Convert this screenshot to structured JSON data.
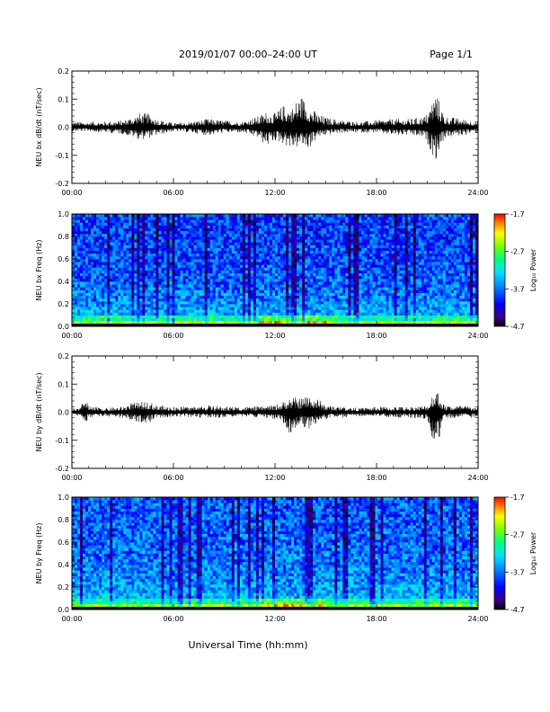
{
  "header": {
    "title": "2019/01/07  00:00–24:00 UT",
    "page": "Page 1/1"
  },
  "footer": {
    "xlabel": "Universal Time (hh:mm)"
  },
  "colors": {
    "trace": "#000000",
    "background": "#ffffff",
    "colormap": [
      "#000000",
      "#3a0080",
      "#0000ff",
      "#0080ff",
      "#00e0ff",
      "#00ff80",
      "#80ff00",
      "#ffff00",
      "#ff8000",
      "#ff0000"
    ]
  },
  "chart_data": [
    {
      "type": "line",
      "ylabel": "NEU bx dB/dt (nT/sec)",
      "xlim": [
        0,
        24
      ],
      "ylim": [
        -0.2,
        0.2
      ],
      "xtick_labels": [
        "00:00",
        "06:00",
        "12:00",
        "18:00",
        "24:00"
      ],
      "ytick_labels": [
        "-0.2",
        "-0.1",
        "0.0",
        "0.1",
        "0.2"
      ],
      "envelope": {
        "x_hours": [
          0,
          1,
          2,
          3,
          4,
          4.5,
          5,
          6,
          7,
          8,
          9,
          10,
          11,
          11.5,
          12,
          12.5,
          13,
          13.5,
          14,
          14.5,
          15,
          16,
          17,
          18,
          19,
          20,
          20.8,
          21,
          21.5,
          22,
          23,
          24
        ],
        "upper": [
          0.02,
          0.02,
          0.02,
          0.025,
          0.05,
          0.05,
          0.03,
          0.015,
          0.02,
          0.03,
          0.025,
          0.02,
          0.04,
          0.055,
          0.05,
          0.08,
          0.07,
          0.12,
          0.08,
          0.05,
          0.035,
          0.025,
          0.02,
          0.025,
          0.03,
          0.03,
          0.04,
          0.05,
          0.13,
          0.04,
          0.03,
          0.02
        ],
        "lower": [
          -0.015,
          -0.015,
          -0.02,
          -0.025,
          -0.045,
          -0.04,
          -0.03,
          -0.015,
          -0.02,
          -0.03,
          -0.02,
          -0.02,
          -0.04,
          -0.07,
          -0.05,
          -0.06,
          -0.08,
          -0.07,
          -0.08,
          -0.04,
          -0.03,
          -0.02,
          -0.02,
          -0.02,
          -0.03,
          -0.03,
          -0.04,
          -0.06,
          -0.12,
          -0.04,
          -0.03,
          -0.02
        ]
      }
    },
    {
      "type": "heatmap",
      "ylabel": "NEU bx Freq (Hz)",
      "xlim": [
        0,
        24
      ],
      "ylim": [
        0.0,
        1.0
      ],
      "xtick_labels": [
        "00:00",
        "06:00",
        "12:00",
        "18:00",
        "24:00"
      ],
      "ytick_labels": [
        "0.0",
        "0.2",
        "0.4",
        "0.6",
        "0.8",
        "1.0"
      ],
      "colorbar": {
        "label": "Log₁₀ Power",
        "ticks": [
          "-1.7",
          "-2.7",
          "-3.7",
          "-4.7"
        ],
        "range": [
          -4.7,
          -1.7
        ]
      },
      "typical_log_power": {
        "high_freq": -3.9,
        "low_freq": -3.3,
        "near_zero_hz": -2.5,
        "enhanced_hours": [
          11,
          15
        ]
      }
    },
    {
      "type": "line",
      "ylabel": "NEU by dB/dt (nT/sec)",
      "xlim": [
        0,
        24
      ],
      "ylim": [
        -0.2,
        0.2
      ],
      "xtick_labels": [
        "00:00",
        "06:00",
        "12:00",
        "18:00",
        "24:00"
      ],
      "ytick_labels": [
        "-0.2",
        "-0.1",
        "0.0",
        "0.1",
        "0.2"
      ],
      "envelope": {
        "x_hours": [
          0,
          0.5,
          0.8,
          1,
          2,
          3,
          3.5,
          4,
          4.5,
          5,
          6,
          7,
          8,
          9,
          10,
          11,
          12,
          12.5,
          13,
          13.5,
          14,
          14.5,
          15,
          16,
          17,
          18,
          19,
          20,
          21,
          21.5,
          22,
          23,
          24
        ],
        "upper": [
          0.015,
          0.015,
          0.06,
          0.02,
          0.015,
          0.02,
          0.035,
          0.035,
          0.04,
          0.025,
          0.02,
          0.02,
          0.025,
          0.02,
          0.02,
          0.02,
          0.025,
          0.04,
          0.055,
          0.05,
          0.065,
          0.05,
          0.025,
          0.02,
          0.015,
          0.02,
          0.02,
          0.02,
          0.025,
          0.095,
          0.025,
          0.025,
          0.02
        ],
        "lower": [
          -0.015,
          -0.015,
          -0.04,
          -0.02,
          -0.015,
          -0.02,
          -0.03,
          -0.035,
          -0.04,
          -0.025,
          -0.015,
          -0.02,
          -0.02,
          -0.02,
          -0.015,
          -0.02,
          -0.025,
          -0.04,
          -0.09,
          -0.05,
          -0.06,
          -0.04,
          -0.025,
          -0.02,
          -0.015,
          -0.015,
          -0.02,
          -0.02,
          -0.025,
          -0.14,
          -0.025,
          -0.02,
          -0.02
        ]
      }
    },
    {
      "type": "heatmap",
      "ylabel": "NEU by Freq (Hz)",
      "xlim": [
        0,
        24
      ],
      "ylim": [
        0.0,
        1.0
      ],
      "xtick_labels": [
        "00:00",
        "06:00",
        "12:00",
        "18:00",
        "24:00"
      ],
      "ytick_labels": [
        "0.0",
        "0.2",
        "0.4",
        "0.6",
        "0.8",
        "1.0"
      ],
      "colorbar": {
        "label": "Log₁₀ Power",
        "ticks": [
          "-1.7",
          "-2.7",
          "-3.7",
          "-4.7"
        ],
        "range": [
          -4.7,
          -1.7
        ]
      },
      "typical_log_power": {
        "high_freq": -3.8,
        "low_freq": -3.3,
        "near_zero_hz": -2.6,
        "enhanced_hours": [
          11,
          15
        ]
      }
    }
  ]
}
